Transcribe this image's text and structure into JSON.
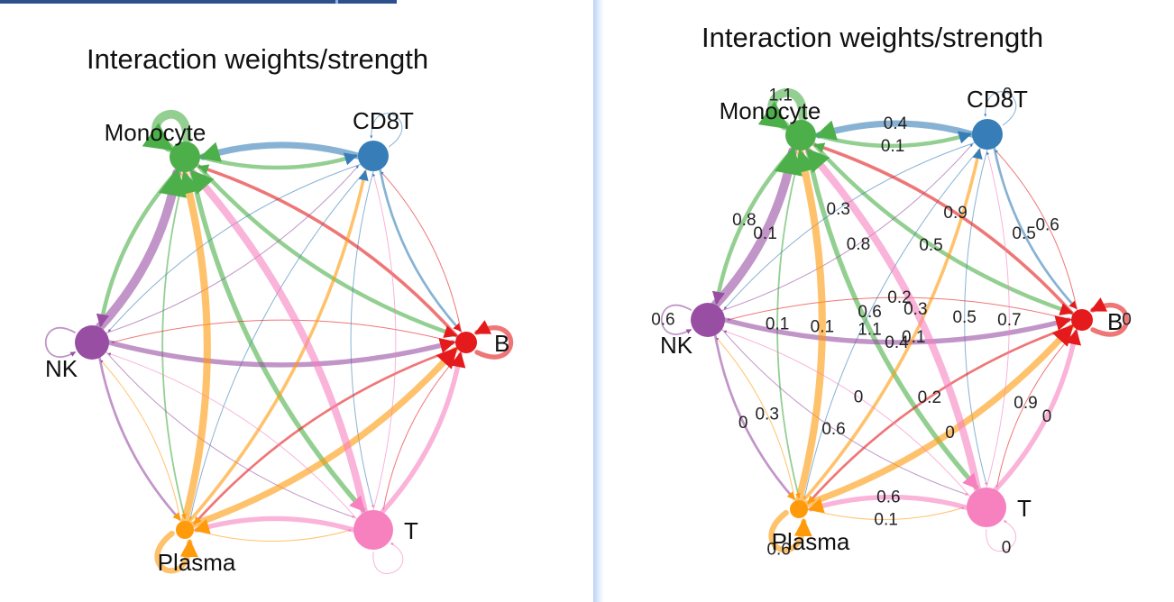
{
  "colors": {
    "Monocyte": "#4daf4a",
    "CD8T": "#377eb8",
    "B": "#e41a1c",
    "NK": "#984ea3",
    "Plasma": "#ff9a0a",
    "T": "#f781bf"
  },
  "panels": [
    {
      "title": "Interaction weights/strength",
      "nodes": [
        {
          "id": "Monocyte",
          "label": "Monocyte"
        },
        {
          "id": "CD8T",
          "label": "CD8T"
        },
        {
          "id": "B",
          "label": "B"
        },
        {
          "id": "NK",
          "label": "NK"
        },
        {
          "id": "Plasma",
          "label": "Plasma"
        },
        {
          "id": "T",
          "label": "T"
        }
      ],
      "edges": [
        {
          "source": "Monocyte",
          "target": "Monocyte",
          "weight": 1.1
        },
        {
          "source": "Monocyte",
          "target": "CD8T",
          "weight": 0.5
        },
        {
          "source": "Monocyte",
          "target": "B",
          "weight": 0.5
        },
        {
          "source": "Monocyte",
          "target": "NK",
          "weight": 0.5
        },
        {
          "source": "Monocyte",
          "target": "Plasma",
          "weight": 0.2
        },
        {
          "source": "Monocyte",
          "target": "T",
          "weight": 0.6
        },
        {
          "source": "CD8T",
          "target": "CD8T",
          "weight": 0.1
        },
        {
          "source": "CD8T",
          "target": "Monocyte",
          "weight": 0.8
        },
        {
          "source": "CD8T",
          "target": "B",
          "weight": 0.3
        },
        {
          "source": "CD8T",
          "target": "NK",
          "weight": 0.1
        },
        {
          "source": "CD8T",
          "target": "T",
          "weight": 0
        },
        {
          "source": "CD8T",
          "target": "Plasma",
          "weight": 0
        },
        {
          "source": "B",
          "target": "B",
          "weight": 0.6
        },
        {
          "source": "B",
          "target": "Monocyte",
          "weight": 0.4
        },
        {
          "source": "B",
          "target": "NK",
          "weight": 0.1
        },
        {
          "source": "B",
          "target": "T",
          "weight": 0.1
        },
        {
          "source": "B",
          "target": "CD8T",
          "weight": 0
        },
        {
          "source": "B",
          "target": "Plasma",
          "weight": 0.3
        },
        {
          "source": "NK",
          "target": "NK",
          "weight": 0.2
        },
        {
          "source": "NK",
          "target": "Monocyte",
          "weight": 1.1
        },
        {
          "source": "NK",
          "target": "B",
          "weight": 0.6
        },
        {
          "source": "NK",
          "target": "CD8T",
          "weight": 0.1
        },
        {
          "source": "NK",
          "target": "Plasma",
          "weight": 0.3
        },
        {
          "source": "NK",
          "target": "T",
          "weight": 0.1
        },
        {
          "source": "Plasma",
          "target": "Plasma",
          "weight": 0.7
        },
        {
          "source": "Plasma",
          "target": "Monocyte",
          "weight": 0.9
        },
        {
          "source": "Plasma",
          "target": "CD8T",
          "weight": 0.4
        },
        {
          "source": "Plasma",
          "target": "B",
          "weight": 0.8
        },
        {
          "source": "Plasma",
          "target": "T",
          "weight": 0
        },
        {
          "source": "Plasma",
          "target": "NK",
          "weight": 0.1
        },
        {
          "source": "T",
          "target": "T",
          "weight": 0
        },
        {
          "source": "T",
          "target": "Monocyte",
          "weight": 0.9
        },
        {
          "source": "T",
          "target": "B",
          "weight": 0.6
        },
        {
          "source": "T",
          "target": "Plasma",
          "weight": 0.6
        },
        {
          "source": "T",
          "target": "CD8T",
          "weight": 0
        },
        {
          "source": "T",
          "target": "NK",
          "weight": 0
        }
      ],
      "show_weights": false
    },
    {
      "title": "Interaction weights/strength",
      "nodes": [
        {
          "id": "Monocyte",
          "label": "Monocyte"
        },
        {
          "id": "CD8T",
          "label": "CD8T"
        },
        {
          "id": "B",
          "label": "B"
        },
        {
          "id": "NK",
          "label": "NK"
        },
        {
          "id": "Plasma",
          "label": "Plasma"
        },
        {
          "id": "T",
          "label": "T"
        }
      ],
      "edge_labels": [
        "1.1",
        "0.1",
        "0.5",
        "0.8",
        "0.1",
        "1.1",
        "0",
        "0.4",
        "0.5",
        "0.3",
        "0.5",
        "0.6",
        "0",
        "0.9",
        "0.2",
        "0.9",
        "0.6",
        "0.2",
        "0.6",
        "0.1",
        "0.4",
        "0.8",
        "0",
        "0.6",
        "0.6",
        "0.1",
        "0.1",
        "0",
        "0.1",
        "0.3",
        "0",
        "0.3",
        "0",
        "0.6",
        "0.7",
        "0"
      ],
      "show_weights": true
    }
  ]
}
